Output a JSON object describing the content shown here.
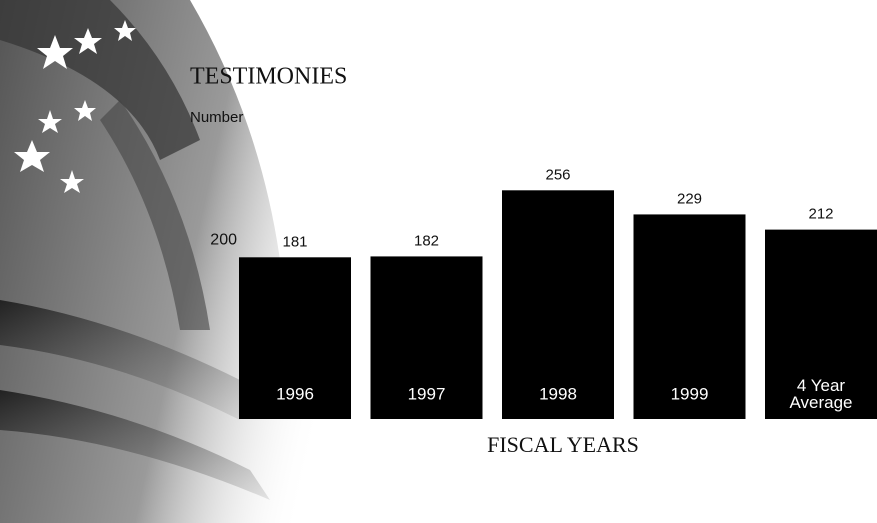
{
  "chart_data": {
    "type": "bar",
    "title": "TESTIMONIES",
    "y_label": "Number",
    "x_label": "FISCAL YEARS",
    "categories": [
      "1996",
      "1997",
      "1998",
      "1999",
      "4 Year Average"
    ],
    "values": [
      181,
      182,
      256,
      229,
      212
    ],
    "color": "#000000",
    "ylim": [
      0,
      300
    ],
    "yticks": [
      200
    ]
  }
}
